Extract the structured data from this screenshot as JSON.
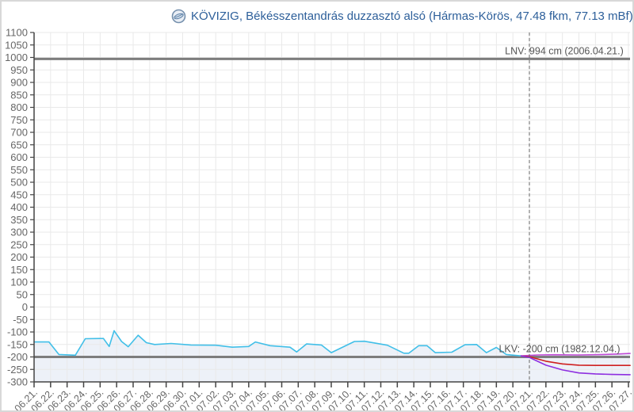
{
  "header": {
    "title": "KÖVIZIG, Békésszentandrás duzzasztó alsó (Hármas-Körös, 47.48 fkm, 77.13 mBf)",
    "logo_icon": "gauge-logo-icon"
  },
  "chart_data": {
    "type": "line",
    "title": "KÖVIZIG, Békésszentandrás duzzasztó alsó (Hármas-Körös, 47.48 fkm, 77.13 mBf)",
    "xlabel": "",
    "ylabel": "",
    "y_unit": "cm",
    "ylim": [
      -300,
      1100
    ],
    "y_tick_step": 50,
    "grid": true,
    "legend_position": "none",
    "y_ticks": [
      1100,
      1050,
      1000,
      950,
      900,
      850,
      800,
      750,
      700,
      650,
      600,
      550,
      500,
      450,
      400,
      350,
      300,
      250,
      200,
      150,
      100,
      50,
      0,
      -50,
      -100,
      -150,
      -200,
      -250,
      -300
    ],
    "x_labels": [
      "06.21.",
      "06.22.",
      "06.23.",
      "06.24.",
      "06.25.",
      "06.26.",
      "06.27.",
      "06.28.",
      "06.29.",
      "06.30.",
      "07.01.",
      "07.02.",
      "07.03.",
      "07.04.",
      "07.05.",
      "07.06.",
      "07.07.",
      "07.08.",
      "07.09.",
      "07.10.",
      "07.11.",
      "07.12.",
      "07.13.",
      "07.14.",
      "07.15.",
      "07.16.",
      "07.17.",
      "07.18.",
      "07.19.",
      "07.20.",
      "07.21.",
      "07.22.",
      "07.23.",
      "07.24.",
      "07.25.",
      "07.26.",
      "07.27."
    ],
    "reference_lines": [
      {
        "name": "LNV",
        "value": 994,
        "label": "LNV: 994 cm (2006.04.21.)",
        "color": "#7d7d7d",
        "label_day": 35.7,
        "label_offset": -6
      },
      {
        "name": "LKV",
        "value": -200,
        "label": "LKV: -200 cm (1982.12.04.)",
        "color": "#7d7d7d",
        "label_day": 35.5,
        "label_offset": -6
      }
    ],
    "now_marker": {
      "x_index": 30,
      "label": "07.21.",
      "style": "dashed",
      "color": "#666666"
    },
    "series": [
      {
        "name": "observed-water-level",
        "color": "#41bfe8",
        "width": 1.6,
        "fill": "#edf1f8",
        "points": [
          [
            0,
            -140
          ],
          [
            0.9,
            -140
          ],
          [
            1.5,
            -190
          ],
          [
            2.5,
            -193
          ],
          [
            3.1,
            -127
          ],
          [
            4.2,
            -126
          ],
          [
            4.55,
            -158
          ],
          [
            4.85,
            -95
          ],
          [
            5.3,
            -138
          ],
          [
            5.7,
            -159
          ],
          [
            6.3,
            -113
          ],
          [
            6.8,
            -143
          ],
          [
            7.3,
            -150
          ],
          [
            8.3,
            -146
          ],
          [
            9.5,
            -152
          ],
          [
            11,
            -153
          ],
          [
            12,
            -161
          ],
          [
            13,
            -158
          ],
          [
            13.4,
            -140
          ],
          [
            14.3,
            -155
          ],
          [
            15.5,
            -161
          ],
          [
            15.9,
            -180
          ],
          [
            16.5,
            -148
          ],
          [
            17.4,
            -152
          ],
          [
            18,
            -183
          ],
          [
            19.4,
            -138
          ],
          [
            20,
            -137
          ],
          [
            21.4,
            -153
          ],
          [
            22.4,
            -185
          ],
          [
            22.7,
            -185
          ],
          [
            23.3,
            -155
          ],
          [
            23.8,
            -155
          ],
          [
            24.3,
            -183
          ],
          [
            25.3,
            -181
          ],
          [
            26.1,
            -151
          ],
          [
            26.8,
            -150
          ],
          [
            27.4,
            -183
          ],
          [
            28,
            -162
          ],
          [
            28.6,
            -190
          ],
          [
            29.5,
            -196
          ]
        ]
      },
      {
        "name": "forecast-upper",
        "color": "#bf49d6",
        "width": 1.6,
        "fill": "#edf1f8",
        "points": [
          [
            29.5,
            -196
          ],
          [
            30,
            -194
          ],
          [
            30.5,
            -192
          ],
          [
            31.5,
            -191
          ],
          [
            33,
            -192
          ],
          [
            34.5,
            -190
          ],
          [
            35.5,
            -188
          ],
          [
            36.1,
            -186
          ]
        ]
      },
      {
        "name": "forecast-middle",
        "color": "#cf2020",
        "width": 1.6,
        "fill": null,
        "points": [
          [
            29.5,
            -196
          ],
          [
            30,
            -199
          ],
          [
            31,
            -217
          ],
          [
            32,
            -228
          ],
          [
            33,
            -233
          ],
          [
            34,
            -234
          ],
          [
            36.1,
            -234
          ]
        ]
      },
      {
        "name": "forecast-lower",
        "color": "#8e2fe0",
        "width": 1.6,
        "fill": null,
        "points": [
          [
            29.5,
            -196
          ],
          [
            30,
            -202
          ],
          [
            31,
            -233
          ],
          [
            32,
            -252
          ],
          [
            33,
            -264
          ],
          [
            34,
            -268
          ],
          [
            35,
            -270
          ],
          [
            36.1,
            -271
          ]
        ]
      }
    ]
  },
  "style": {
    "grid_color": "#e9e9e9",
    "axis_color": "#444444",
    "tick_label_color": "#666666",
    "ref_label_color": "#555555",
    "title_color": "#2d5f9a"
  }
}
